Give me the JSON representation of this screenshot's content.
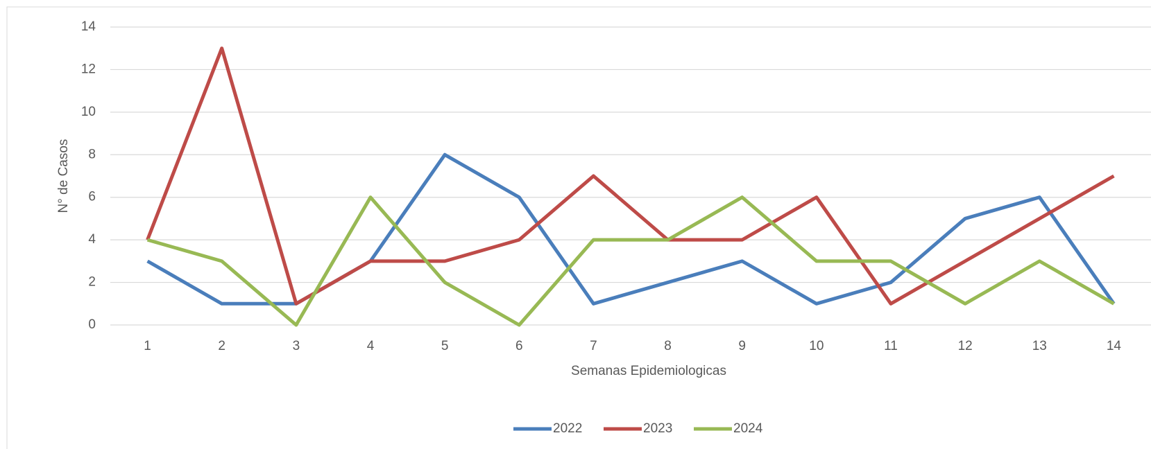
{
  "chart_data": {
    "type": "line",
    "x_label": "Semanas Epidemiologicas",
    "y_label": "N° de Casos",
    "categories": [
      "1",
      "2",
      "3",
      "4",
      "5",
      "6",
      "7",
      "8",
      "9",
      "10",
      "11",
      "12",
      "13",
      "14"
    ],
    "series": [
      {
        "name": "2022",
        "color": "#4a7ebb",
        "values": [
          3,
          1,
          1,
          3,
          8,
          6,
          1,
          2,
          3,
          1,
          2,
          5,
          6,
          1
        ]
      },
      {
        "name": "2023",
        "color": "#be4b48",
        "values": [
          4,
          13,
          1,
          3,
          3,
          4,
          7,
          4,
          4,
          6,
          1,
          3,
          5,
          7
        ]
      },
      {
        "name": "2024",
        "color": "#98b954",
        "values": [
          4,
          3,
          0,
          6,
          2,
          0,
          4,
          4,
          6,
          3,
          3,
          1,
          3,
          1
        ]
      }
    ],
    "ylim": [
      0,
      14
    ],
    "yticks": [
      0,
      2,
      4,
      6,
      8,
      10,
      12,
      14
    ],
    "grid": true,
    "legend": "bottom"
  }
}
